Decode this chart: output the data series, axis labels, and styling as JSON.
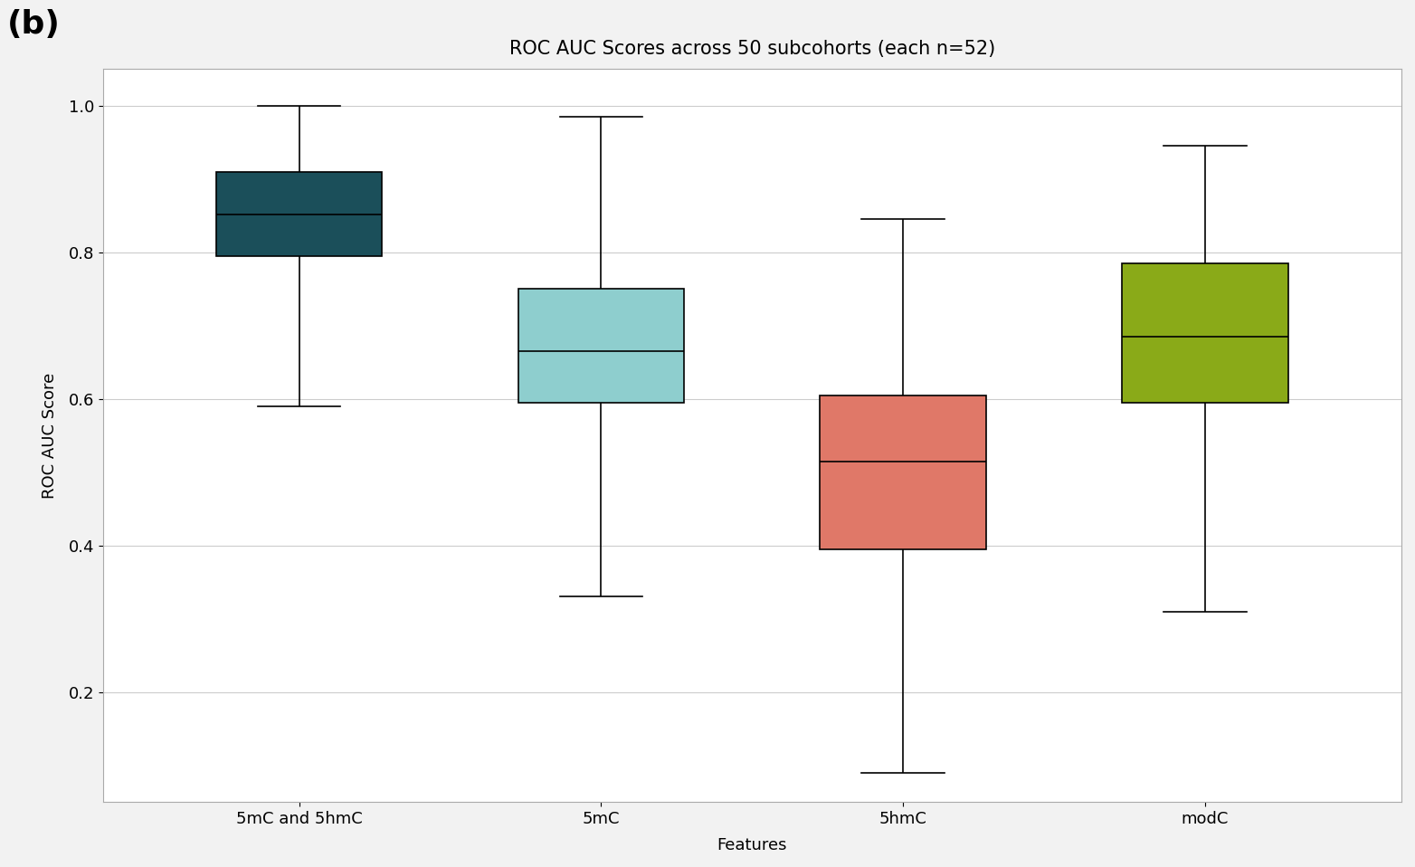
{
  "title": "ROC AUC Scores across 50 subcohorts (each n=52)",
  "xlabel": "Features",
  "ylabel": "ROC AUC Score",
  "label_b": "(b)",
  "categories": [
    "5mC and 5hmC",
    "5mC",
    "5hmC",
    "modC"
  ],
  "box_data": {
    "5mC and 5hmC": {
      "whislo": 0.59,
      "q1": 0.795,
      "med": 0.852,
      "q3": 0.91,
      "whishi": 1.0,
      "color": "#1b4f5a"
    },
    "5mC": {
      "whislo": 0.33,
      "q1": 0.595,
      "med": 0.665,
      "q3": 0.75,
      "whishi": 0.985,
      "color": "#8ecece"
    },
    "5hmC": {
      "whislo": 0.09,
      "q1": 0.395,
      "med": 0.515,
      "q3": 0.605,
      "whishi": 0.845,
      "color": "#e07868"
    },
    "modC": {
      "whislo": 0.31,
      "q1": 0.595,
      "med": 0.685,
      "q3": 0.785,
      "whishi": 0.945,
      "color": "#8aaa18"
    }
  },
  "ylim": [
    0.05,
    1.05
  ],
  "yticks": [
    0.2,
    0.4,
    0.6,
    0.8,
    1.0
  ],
  "background_color": "#f2f2f2",
  "plot_bg_color": "#ffffff",
  "title_fontsize": 15,
  "label_fontsize": 13,
  "tick_fontsize": 13,
  "box_width": 0.55,
  "linewidth": 1.2,
  "whisker_linewidth": 1.2,
  "median_linewidth": 1.2
}
